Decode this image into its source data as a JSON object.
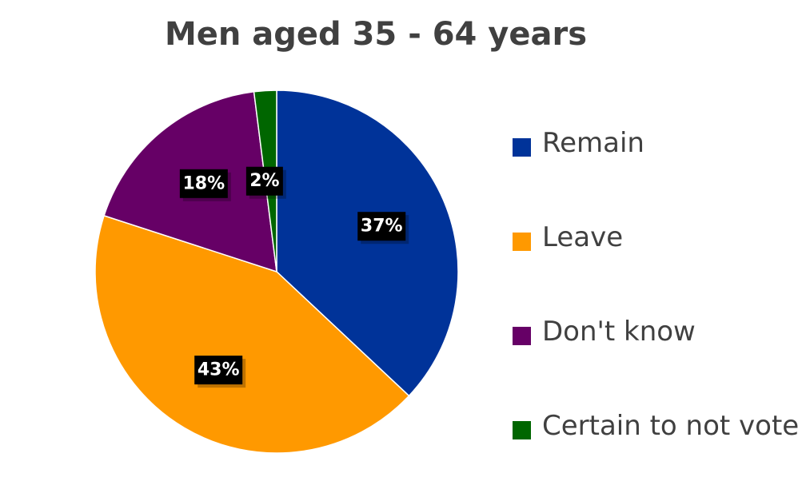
{
  "chart_data": {
    "type": "pie",
    "title": "Men aged 35 - 64 years",
    "slices": [
      {
        "name": "Remain",
        "value": 37,
        "label": "37%",
        "color": "#003399"
      },
      {
        "name": "Leave",
        "value": 43,
        "label": "43%",
        "color": "#FF9900"
      },
      {
        "name": "Don't know",
        "value": 18,
        "label": "18%",
        "color": "#660066"
      },
      {
        "name": "Certain to not vote",
        "value": 2,
        "label": "2%",
        "color": "#006600"
      }
    ],
    "start_angle_deg": 0,
    "direction": "clockwise",
    "legend_position": "right",
    "data_label_style": "white bold text on black box"
  }
}
